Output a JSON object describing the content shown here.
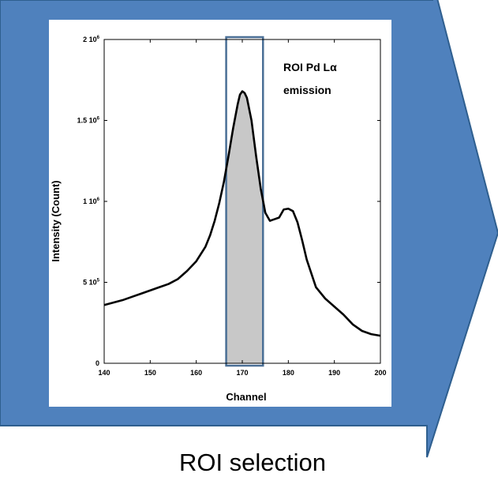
{
  "colors": {
    "arrow_fill": "#4f81bd",
    "arrow_edge": "#2f5f8f",
    "roi_fill": "#c8c8c8",
    "roi_border": "#4a6f96",
    "curve": "#000000"
  },
  "caption": "ROI selection",
  "chart_data": {
    "type": "line",
    "title": "",
    "xlabel": "Channel",
    "ylabel": "Intensity (Count)",
    "xlim": [
      140,
      200
    ],
    "ylim": [
      0,
      2000000
    ],
    "x_ticks": [
      140,
      150,
      160,
      170,
      180,
      190,
      200
    ],
    "x_tick_labels": [
      "140",
      "150",
      "160",
      "170",
      "180",
      "190",
      "200"
    ],
    "y_ticks": [
      {
        "value": 0,
        "mantissa": "0",
        "exponent": ""
      },
      {
        "value": 500000,
        "mantissa": "5 10",
        "exponent": "5"
      },
      {
        "value": 1000000,
        "mantissa": "1 10",
        "exponent": "6"
      },
      {
        "value": 1500000,
        "mantissa": "1.5 10",
        "exponent": "6"
      },
      {
        "value": 2000000,
        "mantissa": "2 10",
        "exponent": "6"
      }
    ],
    "grid": false,
    "roi": {
      "x_start": 166.5,
      "x_end": 174.5,
      "label_line1": "ROI Pd Lα",
      "label_line2": "emission"
    },
    "series": [
      {
        "x": [
          140,
          142,
          144,
          146,
          148,
          150,
          152,
          154,
          156,
          158,
          160,
          162,
          163,
          164,
          165,
          166,
          167,
          168,
          169,
          169.5,
          170,
          170.5,
          171,
          172,
          173,
          174,
          175,
          176,
          176.5,
          177,
          178,
          179,
          180,
          181,
          182,
          183,
          184,
          186,
          188,
          190,
          192,
          194,
          196,
          198,
          200
        ],
        "y": [
          360000,
          375000,
          390000,
          410000,
          430000,
          450000,
          470000,
          490000,
          520000,
          570000,
          630000,
          720000,
          790000,
          880000,
          990000,
          1120000,
          1280000,
          1450000,
          1600000,
          1660000,
          1680000,
          1670000,
          1640000,
          1500000,
          1280000,
          1080000,
          930000,
          880000,
          885000,
          890000,
          900000,
          950000,
          955000,
          940000,
          870000,
          760000,
          640000,
          470000,
          400000,
          350000,
          300000,
          240000,
          200000,
          180000,
          170000
        ]
      }
    ]
  }
}
